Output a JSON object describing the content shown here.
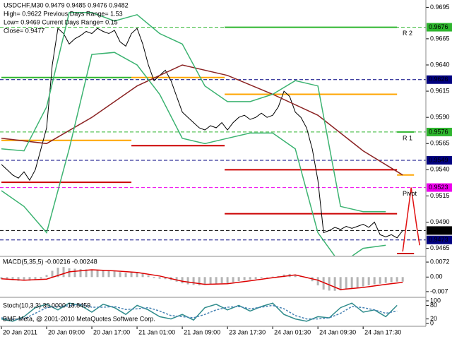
{
  "header": {
    "line1": "USDCHF,M30  0.9479 0.9485 0.9476 0.9482",
    "line2": "High= 0.9622    Previous Days Range= 1.53",
    "line3": "Low= 0.9469    Current Days Range= 0.15",
    "line4": "Close= 0.9477"
  },
  "copyright": "BMF-Meta, @ 2001-2010 MetaQuotes Software Corp.",
  "chart_data": [
    {
      "type": "line",
      "x": [
        0,
        1,
        2,
        3,
        4,
        5,
        6,
        7,
        8,
        9,
        10,
        11,
        12,
        13,
        14,
        15,
        16,
        17,
        18,
        19,
        20,
        21,
        22,
        23,
        24,
        25,
        26,
        27,
        28,
        29,
        30,
        31,
        32,
        33,
        34,
        35,
        36,
        37,
        38,
        39,
        40,
        41,
        42,
        43,
        44,
        45,
        46,
        47,
        48,
        49,
        50,
        51,
        52,
        53,
        54,
        55,
        56,
        57,
        58,
        59,
        60,
        61,
        62,
        63,
        64,
        65,
        66,
        67,
        68,
        69,
        70,
        71
      ],
      "xlim": [
        -0.25,
        75.1
      ],
      "ylim": [
        0.9458,
        0.9702
      ],
      "xticks": [
        {
          "value": 0,
          "label": "20 Jan 2011"
        },
        {
          "value": 8,
          "label": "20 Jan 09:00"
        },
        {
          "value": 16,
          "label": "20 Jan 17:00"
        },
        {
          "value": 24,
          "label": "21 Jan 01:00"
        },
        {
          "value": 32,
          "label": "21 Jan 09:00"
        },
        {
          "value": 40,
          "label": "23 Jan 17:30"
        },
        {
          "value": 48,
          "label": "24 Jan 01:30"
        },
        {
          "value": 56,
          "label": "24 Jan 09:30"
        },
        {
          "value": 64,
          "label": "24 Jan 17:30"
        }
      ],
      "yticks": [
        0.9695,
        0.9665,
        {
          "value": 0.964,
          "label": "0.9640"
        },
        0.9615,
        {
          "value": 0.959,
          "label": "0.9590"
        },
        0.9565,
        {
          "value": 0.954,
          "label": "0.9540"
        },
        0.9515,
        {
          "value": 0.949,
          "label": "0.9490"
        },
        0.9465
      ],
      "series": [
        {
          "color": "#000000",
          "values": [
            0.9545,
            0.954,
            0.9535,
            0.9532,
            0.9538,
            0.953,
            0.954,
            0.956,
            0.958,
            0.964,
            0.9675,
            0.967,
            0.966,
            0.9665,
            0.9668,
            0.9672,
            0.967,
            0.9675,
            0.9672,
            0.967,
            0.9673,
            0.9662,
            0.9658,
            0.967,
            0.9675,
            0.966,
            0.964,
            0.9625,
            0.963,
            0.9635,
            0.9625,
            0.961,
            0.9595,
            0.959,
            0.9585,
            0.958,
            0.9578,
            0.9582,
            0.958,
            0.9585,
            0.9578,
            0.9585,
            0.959,
            0.9592,
            0.9588,
            0.959,
            0.9594,
            0.959,
            0.9592,
            0.96,
            0.9615,
            0.961,
            0.9595,
            0.959,
            0.958,
            0.956,
            0.953,
            0.948,
            0.9482,
            0.9485,
            0.9483,
            0.9486,
            0.9484,
            0.9486,
            0.9488,
            0.9485,
            0.949,
            0.9478,
            0.9476,
            0.9478,
            0.9475,
            0.9482
          ]
        },
        {
          "color": "#8b2323",
          "x": [
            0,
            8,
            16,
            24,
            32,
            40,
            48,
            56,
            64,
            71
          ],
          "values": [
            0.957,
            0.9565,
            0.959,
            0.962,
            0.964,
            0.963,
            0.9612,
            0.9592,
            0.9558,
            0.9535
          ]
        },
        {
          "color": "#3cb371",
          "x": [
            0,
            4,
            8,
            12,
            16,
            20,
            24,
            28,
            32,
            36,
            40,
            44,
            48,
            52,
            56,
            60,
            64,
            68
          ],
          "values": [
            0.956,
            0.9558,
            0.96,
            0.969,
            0.969,
            0.9682,
            0.9688,
            0.967,
            0.966,
            0.962,
            0.9605,
            0.9605,
            0.9612,
            0.9625,
            0.962,
            0.9505,
            0.95,
            0.95
          ]
        },
        {
          "color": "#3cb371",
          "x": [
            0,
            4,
            8,
            12,
            16,
            20,
            24,
            28,
            32,
            36,
            40,
            44,
            48,
            52,
            56,
            60,
            64,
            68
          ],
          "values": [
            0.952,
            0.9505,
            0.948,
            0.956,
            0.965,
            0.9652,
            0.964,
            0.9612,
            0.957,
            0.9565,
            0.957,
            0.9575,
            0.9575,
            0.956,
            0.948,
            0.945,
            0.9465,
            0.9468
          ]
        },
        {
          "color": "#e01010",
          "x": [
            71,
            72.5,
            73.5,
            74
          ],
          "values": [
            0.9462,
            0.9523,
            0.9485,
            0.9468
          ]
        }
      ],
      "periods": [
        0,
        23,
        39.5,
        70,
        73
      ],
      "levels": [
        {
          "color": "#2db52d",
          "values": [
            0.9628,
            0.9705,
            0.9676,
            0.9576
          ]
        },
        {
          "color": "#ffa500",
          "values": [
            0.9568,
            0.9628,
            0.9612,
            0.9535
          ]
        },
        {
          "color": "#cc0000",
          "values": [
            0.9528,
            0.9563,
            0.954,
            0.946
          ]
        },
        {
          "color": "#cc0000",
          "values": [
            null,
            null,
            0.9498,
            null
          ]
        }
      ],
      "price_lines": [
        {
          "value": 0.9676,
          "color": "#2db52d",
          "label": "R 2"
        },
        {
          "value": 0.9626,
          "color": "#000080"
        },
        {
          "value": 0.9576,
          "color": "#2db52d",
          "label": "R 1"
        },
        {
          "value": 0.9549,
          "color": "#000080"
        },
        {
          "value": 0.9523,
          "color": "#ee00ee",
          "label": "Pivot"
        },
        {
          "value": 0.9482,
          "color": "#000000"
        },
        {
          "value": 0.9473,
          "color": "#000080"
        }
      ]
    },
    {
      "type": "bar",
      "title": "MACD(5,35,5) -0.00216 -0.00248",
      "ylim": [
        -0.0094,
        0.0096
      ],
      "yticks": [
        0.0072,
        {
          "value": 0,
          "label": "0.00"
        },
        -0.007
      ],
      "x": [
        0,
        1,
        2,
        3,
        4,
        5,
        6,
        7,
        8,
        9,
        10,
        11,
        12,
        13,
        14,
        15,
        16,
        17,
        18,
        19,
        20,
        21,
        22,
        23,
        24,
        25,
        26,
        27,
        28,
        29,
        30,
        31,
        32,
        33,
        34,
        35,
        36,
        37,
        38,
        39,
        40,
        41,
        42,
        43,
        44,
        45,
        46,
        47,
        48,
        49,
        50,
        51,
        52,
        53,
        54,
        55,
        56,
        57,
        58,
        59,
        60,
        61,
        62,
        63,
        64,
        65,
        66,
        67,
        68,
        69,
        70,
        71
      ],
      "series": [
        {
          "color": "#b4b4b4",
          "values": [
            -0.001,
            -0.0012,
            -0.0015,
            -0.0018,
            -0.0016,
            -0.0017,
            -0.0014,
            -0.0008,
            0.001,
            0.003,
            0.0045,
            0.0048,
            0.0042,
            0.004,
            0.0038,
            0.0037,
            0.0035,
            0.0034,
            0.0032,
            0.003,
            0.0028,
            0.0024,
            0.002,
            0.0022,
            0.0024,
            0.0018,
            0.0008,
            -0.0005,
            -0.0008,
            -0.001,
            -0.0015,
            -0.0022,
            -0.003,
            -0.0035,
            -0.0038,
            -0.004,
            -0.0038,
            -0.0035,
            -0.0034,
            -0.003,
            -0.003,
            -0.0025,
            -0.002,
            -0.0015,
            -0.0012,
            -0.001,
            -0.0005,
            -0.0002,
            0.0002,
            0.0005,
            0.0012,
            0.0015,
            0.001,
            0.0005,
            -0.0005,
            -0.002,
            -0.004,
            -0.006,
            -0.0065,
            -0.0066,
            -0.0064,
            -0.006,
            -0.0055,
            -0.005,
            -0.0045,
            -0.004,
            -0.0035,
            -0.0032,
            -0.0028,
            -0.0025,
            -0.0022,
            -0.0022
          ]
        },
        {
          "type": "line",
          "color": "#dd0000",
          "x": [
            0,
            4,
            8,
            12,
            16,
            20,
            24,
            28,
            32,
            36,
            40,
            44,
            48,
            52,
            56,
            60,
            64,
            68,
            71
          ],
          "values": [
            -0.0008,
            -0.0015,
            -0.001,
            0.0025,
            0.0035,
            0.003,
            0.0022,
            0.0005,
            -0.002,
            -0.0035,
            -0.0032,
            -0.0018,
            -0.0003,
            0.001,
            -0.0015,
            -0.006,
            -0.005,
            -0.0035,
            -0.0025
          ]
        }
      ]
    },
    {
      "type": "line",
      "title": "Stoch(10,3,3) 30.0000 18.8459",
      "ylim": [
        0,
        100
      ],
      "yticks": [
        100,
        80,
        20,
        0
      ],
      "series": [
        {
          "color": "#2e8b8b",
          "x": [
            0,
            2,
            4,
            6,
            8,
            10,
            12,
            14,
            16,
            18,
            20,
            22,
            24,
            26,
            28,
            30,
            32,
            34,
            36,
            38,
            40,
            42,
            44,
            46,
            48,
            50,
            52,
            54,
            56,
            58,
            60,
            62,
            64,
            66,
            68,
            70
          ],
          "values": [
            20,
            10,
            30,
            70,
            85,
            60,
            90,
            80,
            50,
            85,
            70,
            40,
            80,
            60,
            30,
            20,
            40,
            15,
            70,
            85,
            60,
            80,
            55,
            75,
            90,
            40,
            20,
            10,
            30,
            25,
            70,
            90,
            50,
            60,
            30,
            80
          ]
        },
        {
          "color": "#4682b4",
          "dash": true,
          "x": [
            0,
            2,
            4,
            6,
            8,
            10,
            12,
            14,
            16,
            18,
            20,
            22,
            24,
            26,
            28,
            30,
            32,
            34,
            36,
            38,
            40,
            42,
            44,
            46,
            48,
            50,
            52,
            54,
            56,
            58,
            60,
            62,
            64,
            66,
            68,
            70
          ],
          "values": [
            25,
            18,
            20,
            45,
            70,
            75,
            78,
            85,
            72,
            72,
            75,
            62,
            65,
            70,
            55,
            35,
            30,
            25,
            40,
            60,
            72,
            75,
            65,
            72,
            80,
            65,
            35,
            20,
            20,
            25,
            45,
            75,
            70,
            60,
            45,
            55
          ]
        }
      ]
    }
  ]
}
